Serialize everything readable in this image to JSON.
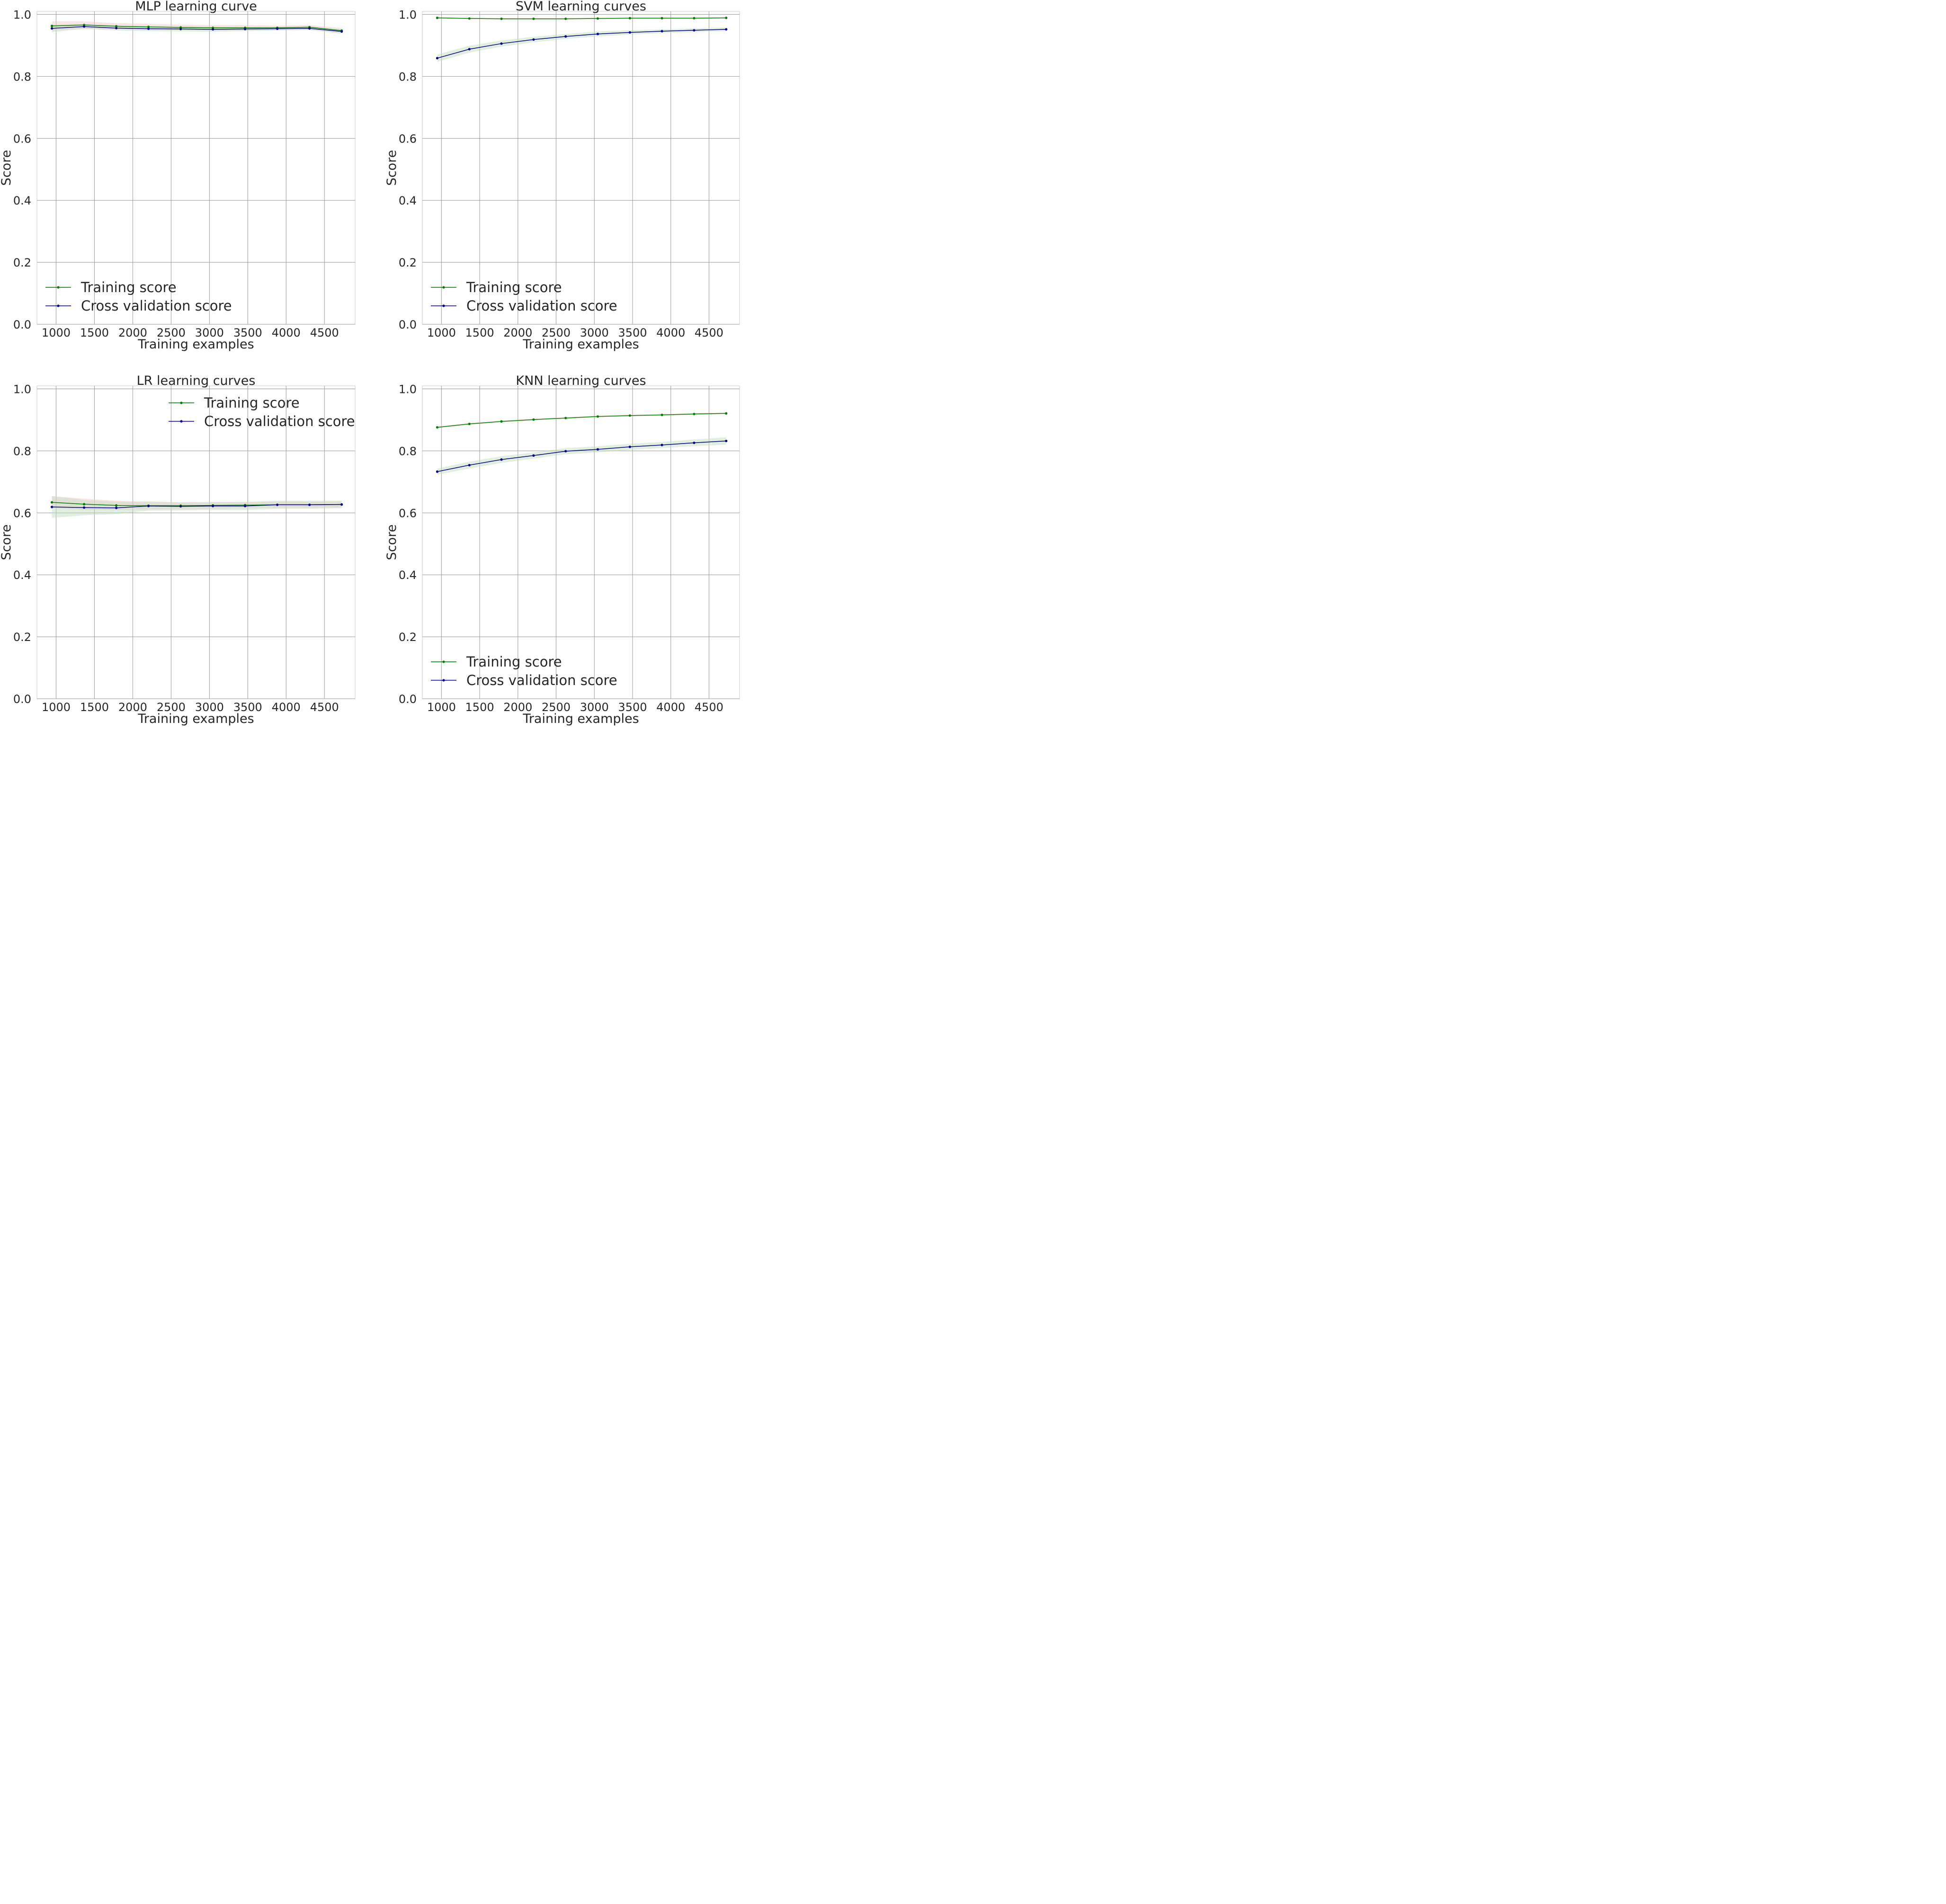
{
  "figure": {
    "background": "#ffffff"
  },
  "colors": {
    "training": "#008000",
    "cv": "#000080",
    "cv_legend": "#0000cd",
    "marker_cv": "#00008b",
    "grid": "#999999",
    "frame": "#cccccc",
    "band_train": "#f4c6c6",
    "band_cv": "#bddcbd"
  },
  "chart_data": [
    {
      "type": "line",
      "title": "MLP learning curve",
      "xlabel": "Training examples",
      "ylabel": "Score",
      "xlim": [
        750,
        4900
      ],
      "ylim": [
        0.0,
        1.0
      ],
      "xticks": [
        1000,
        1500,
        2000,
        2500,
        3000,
        3500,
        4000,
        4500
      ],
      "yticks": [
        0.0,
        0.2,
        0.4,
        0.6,
        0.8,
        1.0
      ],
      "ytick_labels": [
        "0.0",
        "0.2",
        "0.4",
        "0.6",
        "0.8",
        "1.0"
      ],
      "grid": true,
      "legend_position": "lower-left",
      "x": [
        945,
        1365,
        1785,
        2205,
        2625,
        3045,
        3465,
        3885,
        4305,
        4725
      ],
      "series": [
        {
          "name": "Training score",
          "role": "training",
          "values": [
            0.963,
            0.966,
            0.962,
            0.96,
            0.958,
            0.957,
            0.957,
            0.957,
            0.959,
            0.948
          ],
          "std": [
            0.015,
            0.012,
            0.01,
            0.01,
            0.009,
            0.009,
            0.009,
            0.007,
            0.007,
            0.008
          ]
        },
        {
          "name": "Cross validation score",
          "role": "cv",
          "values": [
            0.955,
            0.961,
            0.956,
            0.954,
            0.953,
            0.952,
            0.953,
            0.954,
            0.955,
            0.945
          ],
          "std": [
            0.012,
            0.008,
            0.008,
            0.008,
            0.008,
            0.008,
            0.007,
            0.006,
            0.006,
            0.007
          ]
        }
      ]
    },
    {
      "type": "line",
      "title": "SVM learning curves",
      "xlabel": "Training examples",
      "ylabel": "Score",
      "xlim": [
        750,
        4900
      ],
      "ylim": [
        0.0,
        1.0
      ],
      "xticks": [
        1000,
        1500,
        2000,
        2500,
        3000,
        3500,
        4000,
        4500
      ],
      "yticks": [
        0.0,
        0.2,
        0.4,
        0.6,
        0.8,
        1.0
      ],
      "ytick_labels": [
        "0.0",
        "0.2",
        "0.4",
        "0.6",
        "0.8",
        "1.0"
      ],
      "grid": true,
      "legend_position": "lower-left",
      "x": [
        945,
        1365,
        1785,
        2205,
        2625,
        3045,
        3465,
        3885,
        4305,
        4725
      ],
      "series": [
        {
          "name": "Training score",
          "role": "training",
          "values": [
            0.989,
            0.987,
            0.986,
            0.986,
            0.986,
            0.987,
            0.988,
            0.988,
            0.988,
            0.989
          ],
          "std": [
            0.002,
            0.002,
            0.002,
            0.002,
            0.002,
            0.002,
            0.002,
            0.002,
            0.002,
            0.002
          ]
        },
        {
          "name": "Cross validation score",
          "role": "cv",
          "values": [
            0.859,
            0.888,
            0.906,
            0.919,
            0.929,
            0.937,
            0.942,
            0.946,
            0.949,
            0.952
          ],
          "std": [
            0.012,
            0.011,
            0.01,
            0.009,
            0.008,
            0.008,
            0.007,
            0.006,
            0.006,
            0.006
          ]
        }
      ]
    },
    {
      "type": "line",
      "title": "LR learning curves",
      "xlabel": "Training examples",
      "ylabel": "Score",
      "xlim": [
        750,
        4900
      ],
      "ylim": [
        0.0,
        1.0
      ],
      "xticks": [
        1000,
        1500,
        2000,
        2500,
        3000,
        3500,
        4000,
        4500
      ],
      "yticks": [
        0.0,
        0.2,
        0.4,
        0.6,
        0.8,
        1.0
      ],
      "ytick_labels": [
        "0.0",
        "0.2",
        "0.4",
        "0.6",
        "0.8",
        "1.0"
      ],
      "grid": true,
      "legend_position": "upper-right",
      "x": [
        945,
        1365,
        1785,
        2205,
        2625,
        3045,
        3465,
        3885,
        4305,
        4725
      ],
      "series": [
        {
          "name": "Training score",
          "role": "training",
          "values": [
            0.634,
            0.628,
            0.624,
            0.623,
            0.623,
            0.624,
            0.625,
            0.626,
            0.626,
            0.627
          ],
          "std": [
            0.02,
            0.018,
            0.015,
            0.012,
            0.011,
            0.011,
            0.01,
            0.01,
            0.01,
            0.01
          ]
        },
        {
          "name": "Cross validation score",
          "role": "cv",
          "values": [
            0.619,
            0.617,
            0.616,
            0.622,
            0.621,
            0.622,
            0.622,
            0.626,
            0.626,
            0.627
          ],
          "std": [
            0.035,
            0.025,
            0.02,
            0.015,
            0.013,
            0.013,
            0.013,
            0.013,
            0.013,
            0.012
          ]
        }
      ]
    },
    {
      "type": "line",
      "title": "KNN learning curves",
      "xlabel": "Training examples",
      "ylabel": "Score",
      "xlim": [
        750,
        4900
      ],
      "ylim": [
        0.0,
        1.0
      ],
      "xticks": [
        1000,
        1500,
        2000,
        2500,
        3000,
        3500,
        4000,
        4500
      ],
      "yticks": [
        0.0,
        0.2,
        0.4,
        0.6,
        0.8,
        1.0
      ],
      "ytick_labels": [
        "0.0",
        "0.2",
        "0.4",
        "0.6",
        "0.8",
        "1.0"
      ],
      "grid": true,
      "legend_position": "lower-left",
      "x": [
        945,
        1365,
        1785,
        2205,
        2625,
        3045,
        3465,
        3885,
        4305,
        4725
      ],
      "series": [
        {
          "name": "Training score",
          "role": "training",
          "values": [
            0.876,
            0.887,
            0.895,
            0.901,
            0.906,
            0.911,
            0.914,
            0.916,
            0.919,
            0.921
          ],
          "std": [
            0.003,
            0.003,
            0.003,
            0.003,
            0.003,
            0.003,
            0.003,
            0.003,
            0.003,
            0.003
          ]
        },
        {
          "name": "Cross validation score",
          "role": "cv",
          "values": [
            0.733,
            0.754,
            0.772,
            0.785,
            0.799,
            0.805,
            0.813,
            0.819,
            0.826,
            0.832
          ],
          "std": [
            0.01,
            0.011,
            0.011,
            0.01,
            0.01,
            0.01,
            0.01,
            0.01,
            0.011,
            0.012
          ]
        }
      ]
    }
  ]
}
